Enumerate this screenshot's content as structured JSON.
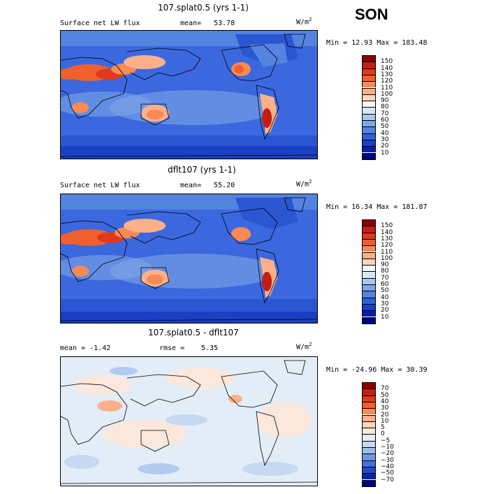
{
  "season": "SON",
  "panels": [
    {
      "title": "107.splat0.5 (yrs 1-1)",
      "left_label": "Surface net LW flux",
      "mean_label": "mean=",
      "mean_value": "53.78",
      "units": "W/m",
      "units_sup": "2",
      "stats": "Min =  12.93 Max = 183.48"
    },
    {
      "title": "dflt107 (yrs 1-1)",
      "left_label": "Surface net LW flux",
      "mean_label": "mean=",
      "mean_value": "55.20",
      "units": "W/m",
      "units_sup": "2",
      "stats": "Min =  16.34 Max = 181.87"
    },
    {
      "title": "107.splat0.5 - dflt107",
      "left_label": "mean =   -1.42",
      "mean_label": "rmse =",
      "mean_value": "5.35",
      "units": "W/m",
      "units_sup": "2",
      "stats": "Min = -24.96 Max =  30.39"
    }
  ],
  "colorbars": [
    {
      "labels": [
        "150",
        "140",
        "130",
        "120",
        "110",
        "100",
        "90",
        "80",
        "70",
        "60",
        "50",
        "40",
        "30",
        "20",
        "10"
      ],
      "colors": [
        "#8b0000",
        "#c41e12",
        "#e03a1c",
        "#f0602e",
        "#f88a55",
        "#fcb08a",
        "#fdd5bd",
        "#f7f7f7",
        "#d7e6f5",
        "#a8c9ee",
        "#7fa7e6",
        "#5483e0",
        "#3060d8",
        "#1840c8",
        "#0a1fa8",
        "#000080"
      ]
    },
    {
      "labels": [
        "150",
        "140",
        "130",
        "120",
        "110",
        "100",
        "90",
        "80",
        "70",
        "60",
        "50",
        "40",
        "30",
        "20",
        "10"
      ],
      "colors": [
        "#8b0000",
        "#c41e12",
        "#e03a1c",
        "#f0602e",
        "#f88a55",
        "#fcb08a",
        "#fdd5bd",
        "#f7f7f7",
        "#d7e6f5",
        "#a8c9ee",
        "#7fa7e6",
        "#5483e0",
        "#3060d8",
        "#1840c8",
        "#0a1fa8",
        "#000080"
      ]
    },
    {
      "labels": [
        "70",
        "50",
        "40",
        "30",
        "20",
        "10",
        "5",
        "0",
        "−5",
        "−10",
        "−20",
        "−30",
        "−40",
        "−50",
        "−70"
      ],
      "colors": [
        "#8b0000",
        "#c41e12",
        "#e03a1c",
        "#f0602e",
        "#f88a55",
        "#fcb08a",
        "#fdd5bd",
        "#fbe7dc",
        "#e3edf8",
        "#c5d9f2",
        "#9dbdec",
        "#6f98e3",
        "#4472da",
        "#1f4ccc",
        "#0a24a8",
        "#000080"
      ]
    }
  ],
  "chart_data": [
    {
      "type": "heatmap",
      "title": "107.splat0.5 (yrs 1-1)",
      "field": "Surface net LW flux",
      "units": "W/m2",
      "mean": 53.78,
      "min": 12.93,
      "max": 183.48,
      "contour_levels": [
        10,
        20,
        30,
        40,
        50,
        60,
        70,
        80,
        90,
        100,
        110,
        120,
        130,
        140,
        150
      ]
    },
    {
      "type": "heatmap",
      "title": "dflt107 (yrs 1-1)",
      "field": "Surface net LW flux",
      "units": "W/m2",
      "mean": 55.2,
      "min": 16.34,
      "max": 181.87,
      "contour_levels": [
        10,
        20,
        30,
        40,
        50,
        60,
        70,
        80,
        90,
        100,
        110,
        120,
        130,
        140,
        150
      ]
    },
    {
      "type": "heatmap",
      "title": "107.splat0.5 - dflt107",
      "units": "W/m2",
      "mean": -1.42,
      "rmse": 5.35,
      "min": -24.96,
      "max": 30.39,
      "contour_levels": [
        -70,
        -50,
        -40,
        -30,
        -20,
        -10,
        -5,
        0,
        5,
        10,
        20,
        30,
        40,
        50,
        70
      ]
    }
  ]
}
